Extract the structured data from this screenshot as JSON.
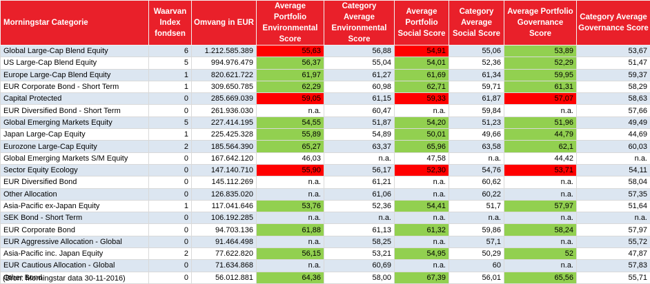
{
  "headers": [
    "Morningstar Categorie",
    "Waarvan Index fondsen",
    "Omvang in EUR",
    "Average Portfolio Environmental Score",
    "Category Average Environmental Score",
    "Average Portfolio Social Score",
    "Category Average Social Score",
    "Average Portfolio Governance Score",
    "Category Average Governance Score"
  ],
  "rows": [
    {
      "cells": [
        "Global Large-Cap Blend Equity",
        "6",
        "1.212.585.389",
        "55,63",
        "56,88",
        "54,91",
        "55,06",
        "53,89",
        "53,67"
      ],
      "fills": {
        "3": "r",
        "5": "r",
        "7": "g"
      }
    },
    {
      "cells": [
        "US Large-Cap Blend Equity",
        "5",
        "994.976.479",
        "56,37",
        "55,04",
        "54,01",
        "52,36",
        "52,29",
        "51,47"
      ],
      "fills": {
        "3": "g",
        "5": "g",
        "7": "g"
      }
    },
    {
      "cells": [
        "Europe Large-Cap Blend Equity",
        "1",
        "820.621.722",
        "61,97",
        "61,27",
        "61,69",
        "61,34",
        "59,95",
        "59,37"
      ],
      "fills": {
        "3": "g",
        "5": "g",
        "7": "g"
      }
    },
    {
      "cells": [
        "EUR Corporate Bond - Short Term",
        "1",
        "309.650.785",
        "62,29",
        "60,98",
        "62,71",
        "59,71",
        "61,31",
        "58,29"
      ],
      "fills": {
        "3": "g",
        "5": "g",
        "7": "g"
      }
    },
    {
      "cells": [
        "Capital Protected",
        "0",
        "285.669.039",
        "59,05",
        "61,15",
        "59,33",
        "61,87",
        "57,07",
        "58,63"
      ],
      "fills": {
        "3": "r",
        "5": "r",
        "7": "r"
      }
    },
    {
      "cells": [
        "EUR Diversified Bond - Short Term",
        "0",
        "261.936.030",
        "n.a.",
        "60,47",
        "n.a.",
        "59,84",
        "n.a.",
        "57,66"
      ],
      "fills": {}
    },
    {
      "cells": [
        "Global Emerging Markets Equity",
        "5",
        "227.414.195",
        "54,55",
        "51,87",
        "54,20",
        "51,23",
        "51,96",
        "49,49"
      ],
      "fills": {
        "3": "g",
        "5": "g",
        "7": "g"
      }
    },
    {
      "cells": [
        "Japan Large-Cap Equity",
        "1",
        "225.425.328",
        "55,89",
        "54,89",
        "50,01",
        "49,66",
        "44,79",
        "44,69"
      ],
      "fills": {
        "3": "g",
        "5": "g",
        "7": "g"
      }
    },
    {
      "cells": [
        "Eurozone Large-Cap Equity",
        "2",
        "185.564.390",
        "65,27",
        "63,37",
        "65,96",
        "63,58",
        "62,1",
        "60,03"
      ],
      "fills": {
        "3": "g",
        "5": "g",
        "7": "g"
      }
    },
    {
      "cells": [
        "Global Emerging Markets S/M Equity",
        "0",
        "167.642.120",
        "46,03",
        "n.a.",
        "47,58",
        "n.a.",
        "44,42",
        "n.a."
      ],
      "fills": {}
    },
    {
      "cells": [
        "Sector Equity Ecology",
        "0",
        "147.140.710",
        "55,90",
        "56,17",
        "52,30",
        "54,76",
        "53,71",
        "54,11"
      ],
      "fills": {
        "3": "r",
        "5": "r",
        "7": "r"
      }
    },
    {
      "cells": [
        "EUR Diversified Bond",
        "0",
        "145.112.269",
        "n.a.",
        "61,21",
        "n.a.",
        "60,62",
        "n.a.",
        "58,04"
      ],
      "fills": {}
    },
    {
      "cells": [
        "Other Allocation",
        "0",
        "126.835.020",
        "n.a.",
        "61,06",
        "n.a.",
        "60,22",
        "n.a.",
        "57,35"
      ],
      "fills": {}
    },
    {
      "cells": [
        "Asia-Pacific ex-Japan Equity",
        "1",
        "117.041.646",
        "53,76",
        "52,36",
        "54,41",
        "51,7",
        "57,97",
        "51,64"
      ],
      "fills": {
        "3": "g",
        "5": "g",
        "7": "g"
      }
    },
    {
      "cells": [
        "SEK Bond - Short Term",
        "0",
        "106.192.285",
        "n.a.",
        "n.a.",
        "n.a.",
        "n.a.",
        "n.a.",
        "n.a."
      ],
      "fills": {}
    },
    {
      "cells": [
        "EUR Corporate Bond",
        "0",
        "94.703.136",
        "61,88",
        "61,13",
        "61,32",
        "59,86",
        "58,24",
        "57,97"
      ],
      "fills": {
        "3": "g",
        "5": "g",
        "7": "g"
      }
    },
    {
      "cells": [
        "EUR Aggressive Allocation - Global",
        "0",
        "91.464.498",
        "n.a.",
        "58,25",
        "n.a.",
        "57,1",
        "n.a.",
        "55,72"
      ],
      "fills": {}
    },
    {
      "cells": [
        "Asia-Pacific inc. Japan Equity",
        "2",
        "77.622.820",
        "56,15",
        "53,21",
        "54,95",
        "50,29",
        "52",
        "47,87"
      ],
      "fills": {
        "3": "g",
        "5": "g",
        "7": "g"
      }
    },
    {
      "cells": [
        "EUR Cautious Allocation - Global",
        "0",
        "71.634.868",
        "n.a.",
        "60,69",
        "n.a.",
        "60",
        "n.a.",
        "57,83"
      ],
      "fills": {}
    },
    {
      "cells": [
        "Other Bond",
        "0",
        "56.012.881",
        "64,36",
        "58,00",
        "67,39",
        "56,01",
        "65,56",
        "55,71"
      ],
      "fills": {
        "3": "g",
        "5": "g",
        "7": "g"
      }
    }
  ],
  "footnote": "(Bron: Morningstar data 30-11-2016)"
}
